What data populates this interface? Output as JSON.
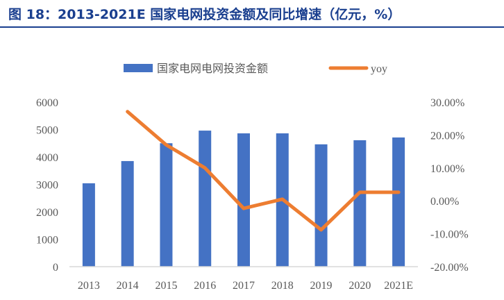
{
  "header": {
    "title": "图 18：2013-2021E 国家电网投资金额及同比增速（亿元，%）"
  },
  "colors": {
    "bar": "#4472c4",
    "line": "#ed7d31",
    "title": "#1a3f8f"
  },
  "chart_data": {
    "type": "bar+line",
    "title": "图 18：2013-2021E 国家电网投资金额及同比增速（亿元，%）",
    "categories": [
      "2013",
      "2014",
      "2015",
      "2016",
      "2017",
      "2018",
      "2019",
      "2020",
      "2021E"
    ],
    "series": [
      {
        "name": "国家电网电网投资金额",
        "type": "bar",
        "axis": "left",
        "values": [
          3040,
          3850,
          4500,
          4960,
          4860,
          4860,
          4460,
          4610,
          4710
        ]
      },
      {
        "name": "yoy",
        "type": "line",
        "axis": "right",
        "values": [
          null,
          27.1,
          17.0,
          10.0,
          -2.3,
          0.5,
          -8.8,
          2.6,
          2.6
        ]
      }
    ],
    "left_axis": {
      "ylim": [
        0,
        6000
      ],
      "ticks": [
        "0",
        "1000",
        "2000",
        "3000",
        "4000",
        "5000",
        "6000"
      ]
    },
    "right_axis": {
      "ylim": [
        -20,
        30
      ],
      "ticks": [
        "-20.00%",
        "-10.00%",
        "0.00%",
        "10.00%",
        "20.00%",
        "30.00%"
      ]
    },
    "legend": {
      "position": "top",
      "items": [
        "国家电网电网投资金额",
        "yoy"
      ]
    },
    "grid": false
  }
}
